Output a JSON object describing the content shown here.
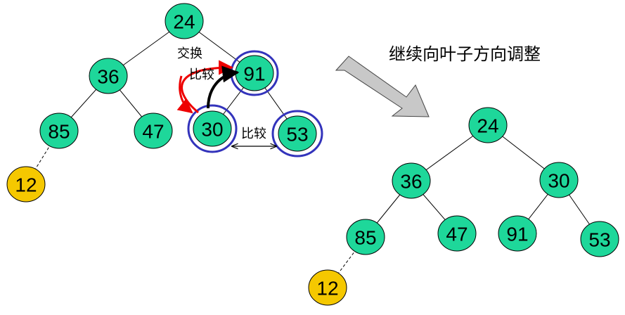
{
  "heading": "继续向叶子方向调整",
  "colors": {
    "node_fill": "#1ed79a",
    "leaf_fill": "#f5c800",
    "highlight_ring": "#3333bb",
    "swap_arrow": "#ee0000",
    "compare_arrow": "#000000",
    "big_arrow": "#c8c8c8"
  },
  "left_tree": {
    "nodes": {
      "root": "24",
      "left": "36",
      "right": "91",
      "left_left": "85",
      "left_right": "47",
      "right_left": "30",
      "right_right": "53",
      "extra": "12"
    },
    "annotations": {
      "swap": "交换",
      "compare_vertical": "比较",
      "compare_horizontal": "比较"
    }
  },
  "right_tree": {
    "nodes": {
      "root": "24",
      "left": "36",
      "right": "30",
      "left_left": "85",
      "left_right": "47",
      "right_left": "91",
      "right_right": "53",
      "extra": "12"
    }
  }
}
